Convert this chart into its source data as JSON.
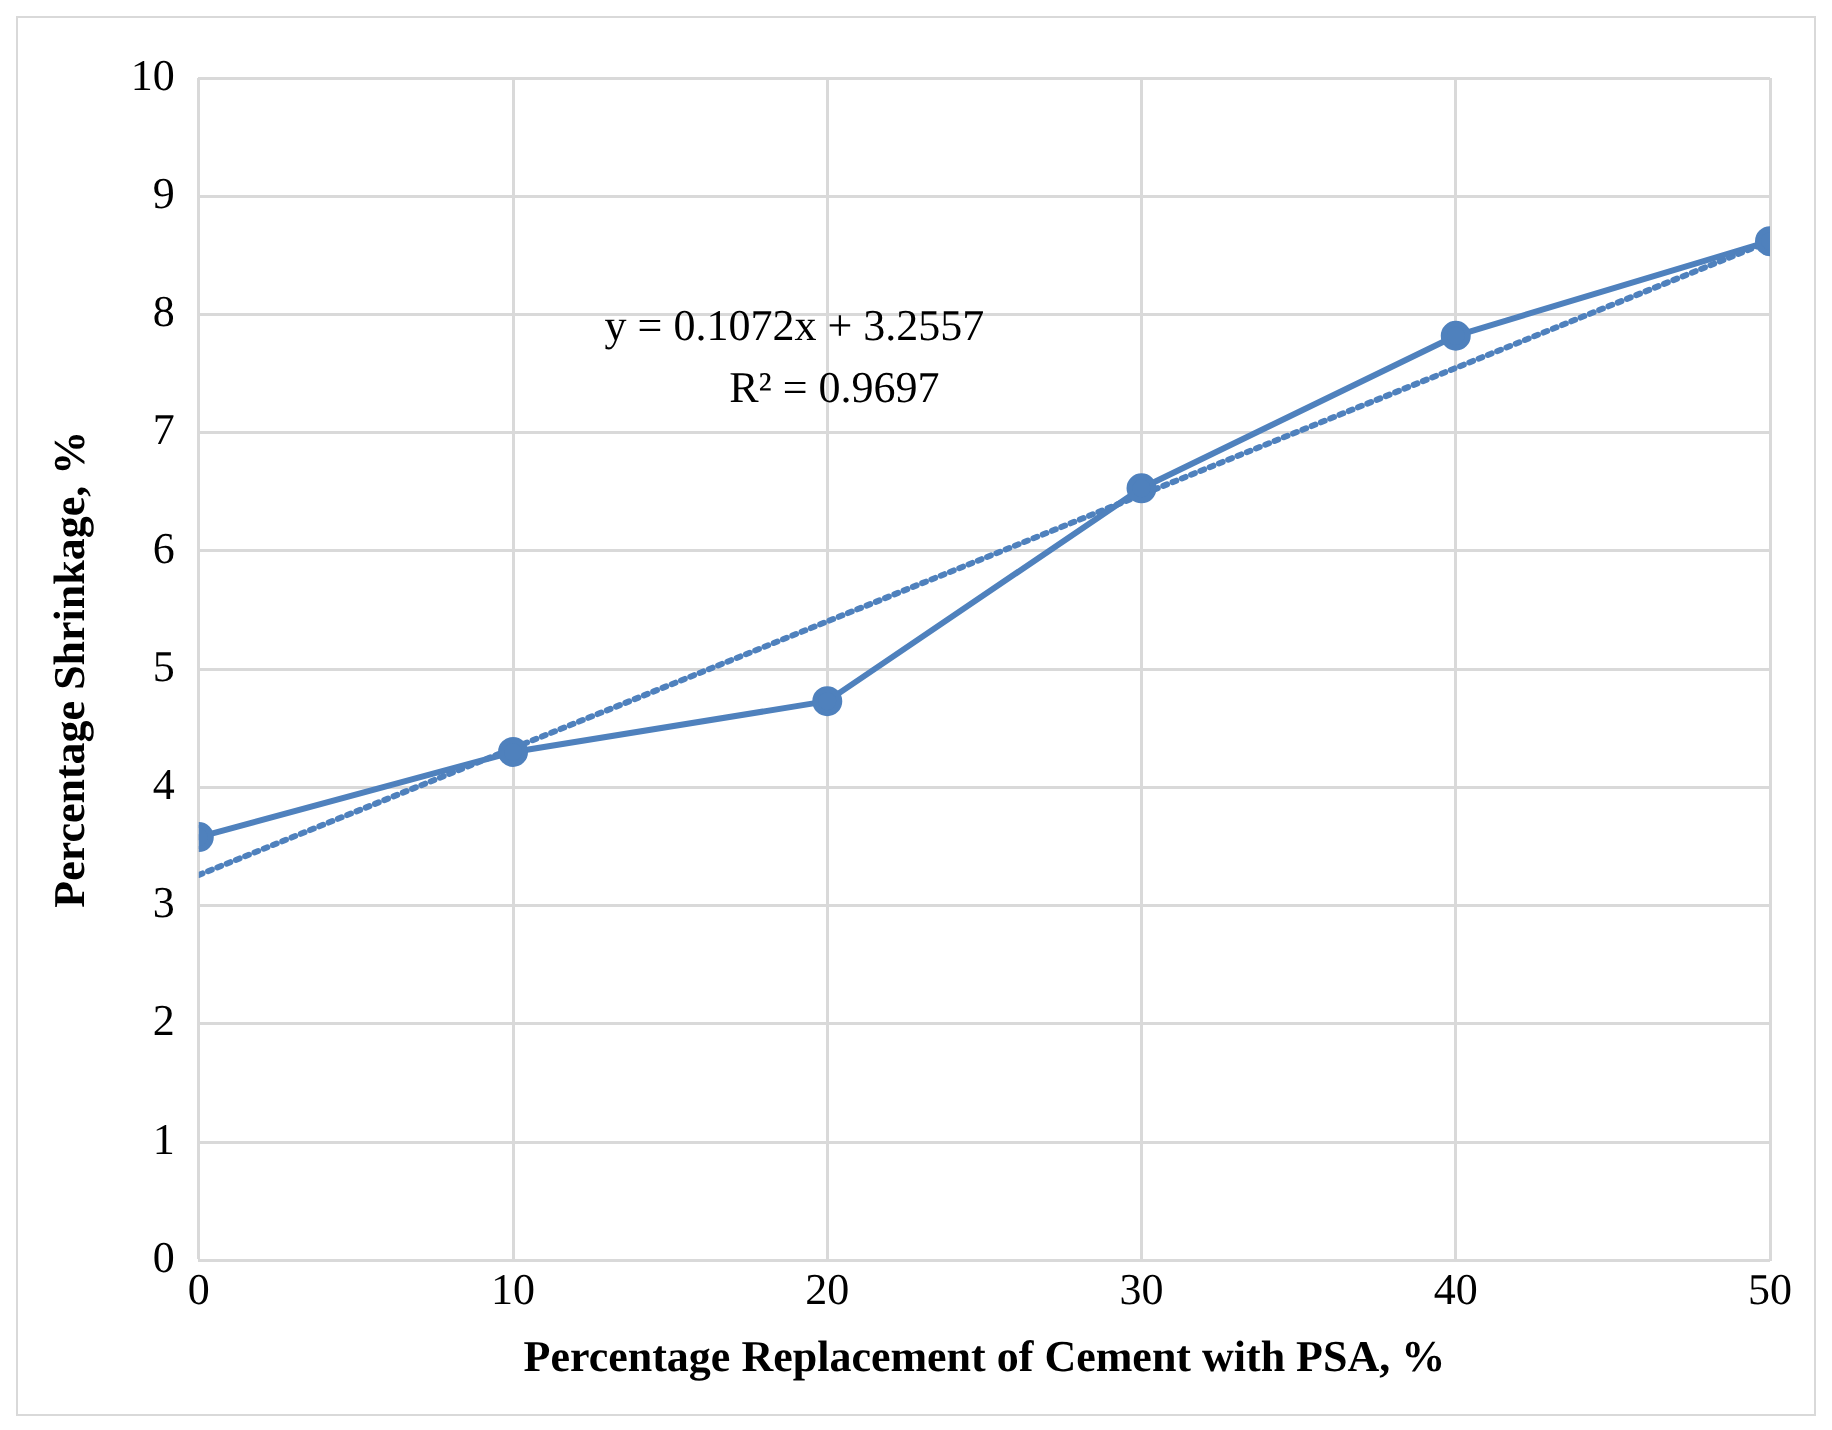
{
  "chart_data": {
    "type": "line",
    "xlabel": "Percentage Replacement of Cement with PSA, %",
    "ylabel": "Percentage Shrinkage, %",
    "x": [
      0,
      10,
      20,
      30,
      40,
      50
    ],
    "series": [
      {
        "color": "#4f81bd",
        "values": [
          3.58,
          4.3,
          4.73,
          6.53,
          7.82,
          8.62
        ],
        "marker": "circle",
        "line_style": "solid"
      },
      {
        "type": "line",
        "x": [
          0,
          50
        ],
        "color": "#4f81bd",
        "values": [
          3.26,
          8.62
        ],
        "marker": "none",
        "line_style": "dotted"
      }
    ],
    "annotations": [
      "y = 0.1072x + 3.2557",
      "R² = 0.9697"
    ],
    "xlim": [
      0,
      50
    ],
    "xticks": [
      0,
      10,
      20,
      30,
      40,
      50
    ],
    "ylim": [
      0,
      10
    ],
    "yticks": [
      0,
      1,
      2,
      3,
      4,
      5,
      6,
      7,
      8,
      9,
      10
    ],
    "grid": true,
    "legend": false
  }
}
